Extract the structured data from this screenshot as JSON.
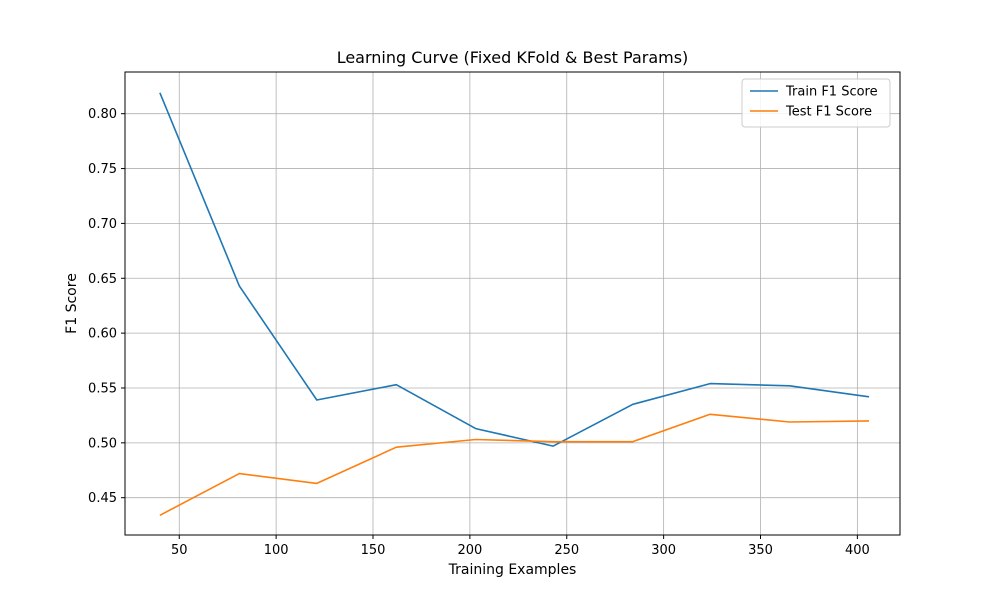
{
  "chart_data": {
    "type": "line",
    "title": "Learning Curve (Fixed KFold & Best Params)",
    "xlabel": "Training Examples",
    "ylabel": "F1 Score",
    "xlim": [
      22,
      422
    ],
    "ylim": [
      0.416,
      0.838
    ],
    "xticks": [
      50,
      100,
      150,
      200,
      250,
      300,
      350,
      400
    ],
    "yticks": [
      0.45,
      0.5,
      0.55,
      0.6,
      0.65,
      0.7,
      0.75,
      0.8
    ],
    "ytick_labels": [
      "0.45",
      "0.50",
      "0.55",
      "0.60",
      "0.65",
      "0.70",
      "0.75",
      "0.80"
    ],
    "grid": true,
    "legend_position": "top-right",
    "x": [
      40,
      81,
      121,
      162,
      203,
      243,
      284,
      324,
      365,
      406
    ],
    "series": [
      {
        "name": "Train F1 Score",
        "color": "#1f77b4",
        "values": [
          0.819,
          0.643,
          0.539,
          0.553,
          0.513,
          0.497,
          0.535,
          0.554,
          0.552,
          0.542
        ]
      },
      {
        "name": "Test F1 Score",
        "color": "#ff7f0e",
        "values": [
          0.434,
          0.472,
          0.463,
          0.496,
          0.503,
          0.501,
          0.501,
          0.526,
          0.519,
          0.52
        ]
      }
    ]
  }
}
